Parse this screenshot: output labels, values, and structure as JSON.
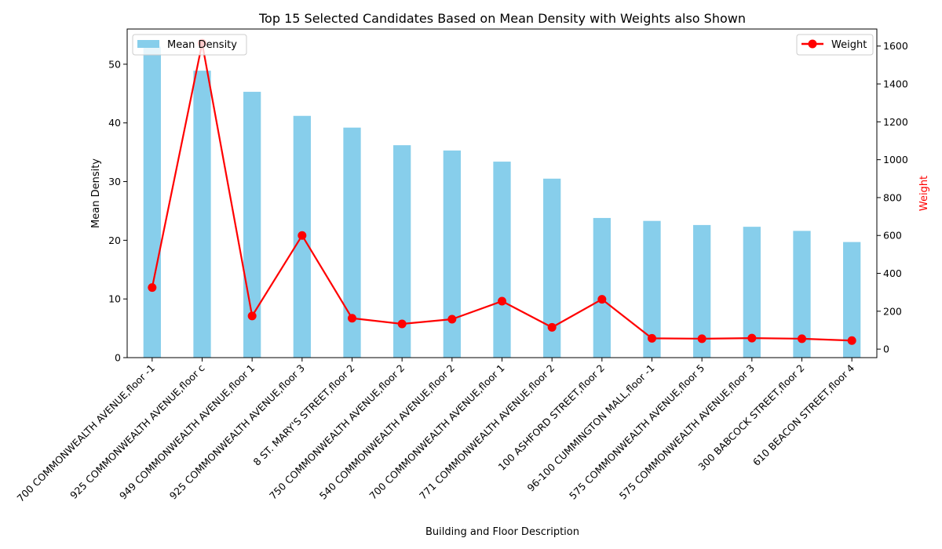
{
  "chart_data": {
    "type": "bar+line",
    "title": "Top 15 Selected Candidates Based on Mean Density with Weights also Shown",
    "xlabel": "Building and Floor Description",
    "ylabel_left": "Mean Density",
    "ylabel_right": "Weight",
    "categories": [
      "700 COMMONWEALTH AVENUE,floor -1",
      "925 COMMONWEALTH AVENUE,floor c",
      "949 COMMONWEALTH AVENUE,floor 1",
      "925 COMMONWEALTH AVENUE,floor 3",
      "8 ST. MARY'S STREET,floor 2",
      "750 COMMONWEALTH AVENUE,floor 2",
      "540 COMMONWEALTH AVENUE,floor 2",
      "700 COMMONWEALTH AVENUE,floor 1",
      "771 COMMONWEALTH AVENUE,floor 2",
      "100 ASHFORD STREET,floor 2",
      "96-100 CUMMINGTON MALL,floor -1",
      "575 COMMONWEALTH AVENUE,floor 5",
      "575 COMMONWEALTH AVENUE,floor 3",
      "300 BABCOCK STREET,floor 2",
      "610 BEACON STREET,floor 4"
    ],
    "series": [
      {
        "name": "Mean Density",
        "axis": "left",
        "kind": "bar",
        "color": "#87ceeb",
        "values": [
          53.0,
          48.9,
          45.3,
          41.2,
          39.2,
          36.2,
          35.3,
          33.4,
          30.5,
          23.8,
          23.3,
          22.6,
          22.3,
          21.6,
          19.7
        ]
      },
      {
        "name": "Weight",
        "axis": "right",
        "kind": "line",
        "color": "#ff0000",
        "values": [
          325,
          1615,
          175,
          600,
          163,
          133,
          158,
          253,
          115,
          263,
          57,
          55,
          58,
          55,
          45
        ]
      }
    ],
    "ylim_left": [
      0,
      56
    ],
    "yticks_left": [
      0,
      10,
      20,
      30,
      40,
      50
    ],
    "ylim_right": [
      -45,
      1690
    ],
    "yticks_right": [
      0,
      200,
      400,
      600,
      800,
      1000,
      1200,
      1400,
      1600
    ],
    "legend_left": {
      "label": "Mean Density",
      "placement": "top-left"
    },
    "legend_right": {
      "label": "Weight",
      "placement": "top-right"
    },
    "grid": false
  }
}
